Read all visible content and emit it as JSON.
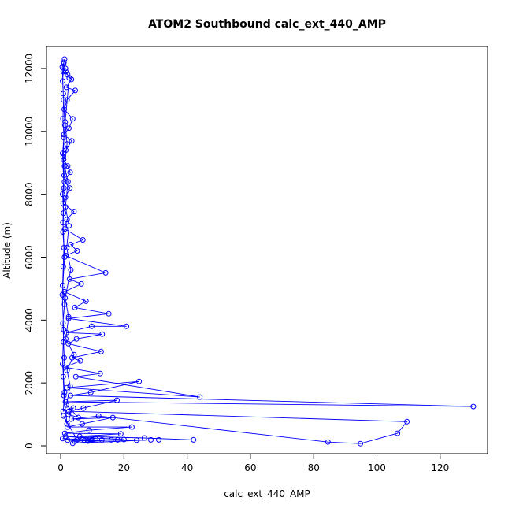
{
  "chart_data": {
    "type": "line",
    "title": "ATOM2 Southbound calc_ext_440_AMP",
    "xlabel": "calc_ext_440_AMP",
    "ylabel": "Altitude (m)",
    "xlim": [
      -4.5,
      135
    ],
    "ylim": [
      -250,
      12700
    ],
    "x_ticks": [
      0,
      20,
      40,
      60,
      80,
      100,
      120
    ],
    "y_ticks": [
      0,
      2000,
      4000,
      6000,
      8000,
      10000,
      12000
    ],
    "grid": false,
    "marker": "open-circle",
    "color": "#0000ff",
    "series": [
      {
        "points": [
          [
            1.2,
            12300
          ],
          [
            0.9,
            12150
          ],
          [
            1.5,
            12000
          ],
          [
            0.8,
            11900
          ],
          [
            2.2,
            11800
          ],
          [
            3.4,
            11650
          ],
          [
            1.8,
            11400
          ],
          [
            4.6,
            11300
          ],
          [
            2.0,
            11000
          ],
          [
            1.1,
            10700
          ],
          [
            3.8,
            10400
          ],
          [
            2.6,
            10100
          ],
          [
            1.0,
            9900
          ],
          [
            3.5,
            9700
          ],
          [
            1.6,
            9400
          ],
          [
            0.9,
            9100
          ],
          [
            2.2,
            8900
          ],
          [
            3.0,
            8700
          ],
          [
            1.2,
            8400
          ],
          [
            2.9,
            8200
          ],
          [
            1.5,
            7900
          ],
          [
            0.8,
            7700
          ],
          [
            4.2,
            7450
          ],
          [
            2.0,
            7200
          ],
          [
            1.3,
            6900
          ],
          [
            7.0,
            6550
          ],
          [
            3.2,
            6400
          ],
          [
            5.2,
            6200
          ],
          [
            1.6,
            6050
          ],
          [
            14.2,
            5500
          ],
          [
            2.8,
            5300
          ],
          [
            6.5,
            5150
          ],
          [
            1.2,
            4900
          ],
          [
            8.0,
            4600
          ],
          [
            4.5,
            4400
          ],
          [
            15.2,
            4200
          ],
          [
            2.5,
            4050
          ],
          [
            20.8,
            3800
          ],
          [
            9.8,
            3800
          ],
          [
            1.8,
            3600
          ],
          [
            13.1,
            3550
          ],
          [
            5.0,
            3400
          ],
          [
            2.4,
            3250
          ],
          [
            12.8,
            3000
          ],
          [
            3.6,
            2800
          ],
          [
            6.2,
            2700
          ],
          [
            1.4,
            2500
          ],
          [
            12.5,
            2300
          ],
          [
            4.8,
            2200
          ],
          [
            44.0,
            1550
          ],
          [
            2.0,
            1850
          ],
          [
            24.8,
            2050
          ],
          [
            9.5,
            1700
          ],
          [
            3.1,
            1600
          ],
          [
            130.5,
            1250
          ],
          [
            1.5,
            1400
          ],
          [
            17.8,
            1450
          ],
          [
            7.2,
            1200
          ],
          [
            2.6,
            1100
          ],
          [
            109.5,
            770
          ],
          [
            106.5,
            400
          ],
          [
            94.8,
            70
          ],
          [
            84.5,
            120
          ],
          [
            12.0,
            950
          ],
          [
            3.4,
            850
          ],
          [
            16.5,
            900
          ],
          [
            6.8,
            700
          ],
          [
            2.1,
            600
          ],
          [
            22.5,
            600
          ],
          [
            9.0,
            500
          ],
          [
            1.3,
            400
          ],
          [
            19.0,
            380
          ],
          [
            6.0,
            300
          ],
          [
            26.5,
            250
          ],
          [
            42.0,
            190
          ],
          [
            31.0,
            190
          ],
          [
            18.0,
            190
          ],
          [
            4.5,
            150
          ],
          [
            0.6,
            230
          ],
          [
            10.0,
            190
          ],
          [
            24.0,
            180
          ],
          [
            2.2,
            180
          ],
          [
            13.0,
            190
          ],
          [
            7.5,
            170
          ],
          [
            28.5,
            190
          ],
          [
            3.8,
            80
          ],
          [
            16.0,
            190
          ],
          [
            8.6,
            150
          ],
          [
            20.0,
            200
          ],
          [
            1.5,
            300
          ],
          [
            11.0,
            230
          ],
          [
            5.2,
            190
          ],
          [
            0.9,
            950
          ],
          [
            2.0,
            700
          ],
          [
            1.0,
            1600
          ],
          [
            0.8,
            2200
          ],
          [
            1.1,
            2800
          ],
          [
            0.9,
            3300
          ],
          [
            0.7,
            3900
          ],
          [
            1.2,
            4500
          ],
          [
            0.6,
            5100
          ],
          [
            0.8,
            5700
          ],
          [
            1.0,
            6300
          ],
          [
            0.7,
            6800
          ],
          [
            0.9,
            7400
          ],
          [
            0.6,
            8000
          ],
          [
            1.1,
            8600
          ],
          [
            0.8,
            9200
          ],
          [
            1.0,
            9800
          ],
          [
            0.7,
            10400
          ],
          [
            0.9,
            11000
          ],
          [
            0.6,
            11600
          ],
          [
            1.0,
            12200
          ],
          [
            0.5,
            12050
          ],
          [
            0.8,
            11200
          ],
          [
            1.3,
            10200
          ],
          [
            0.6,
            9300
          ],
          [
            1.0,
            8200
          ],
          [
            0.7,
            7100
          ],
          [
            1.2,
            6000
          ],
          [
            0.5,
            4800
          ],
          [
            0.9,
            3700
          ],
          [
            0.6,
            2600
          ],
          [
            1.2,
            1700
          ],
          [
            0.8,
            1100
          ],
          [
            4.0,
            1200
          ],
          [
            2.4,
            1000
          ],
          [
            5.6,
            900
          ],
          [
            1.8,
            1300
          ],
          [
            3.0,
            1900
          ],
          [
            2.0,
            2400
          ],
          [
            4.2,
            2900
          ],
          [
            1.6,
            3400
          ],
          [
            2.5,
            4100
          ],
          [
            1.4,
            4700
          ],
          [
            3.2,
            5600
          ],
          [
            1.9,
            6300
          ],
          [
            2.6,
            7000
          ],
          [
            1.5,
            7600
          ],
          [
            2.3,
            8400
          ],
          [
            1.2,
            8900
          ],
          [
            2.0,
            9600
          ],
          [
            1.4,
            10300
          ],
          [
            2.7,
            11700
          ],
          [
            1.6,
            11900
          ]
        ]
      }
    ]
  }
}
